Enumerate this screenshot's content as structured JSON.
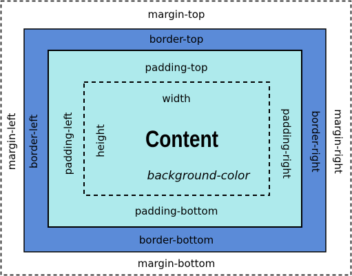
{
  "colors": {
    "border": "#5b8bd8",
    "padding": "#aeeaec",
    "content": "#aeeaec",
    "outline": "#000000"
  },
  "labels": {
    "margin_top": "margin-top",
    "margin_bottom": "margin-bottom",
    "margin_left": "margin-left",
    "margin_right": "margin-right",
    "border_top": "border-top",
    "border_bottom": "border-bottom",
    "border_left": "border-left",
    "border_right": "border-right",
    "padding_top": "padding-top",
    "padding_bottom": "padding-bottom",
    "padding_left": "padding-left",
    "padding_right": "padding-right",
    "width": "width",
    "height": "height",
    "content": "Content",
    "background_color": "background-color"
  }
}
